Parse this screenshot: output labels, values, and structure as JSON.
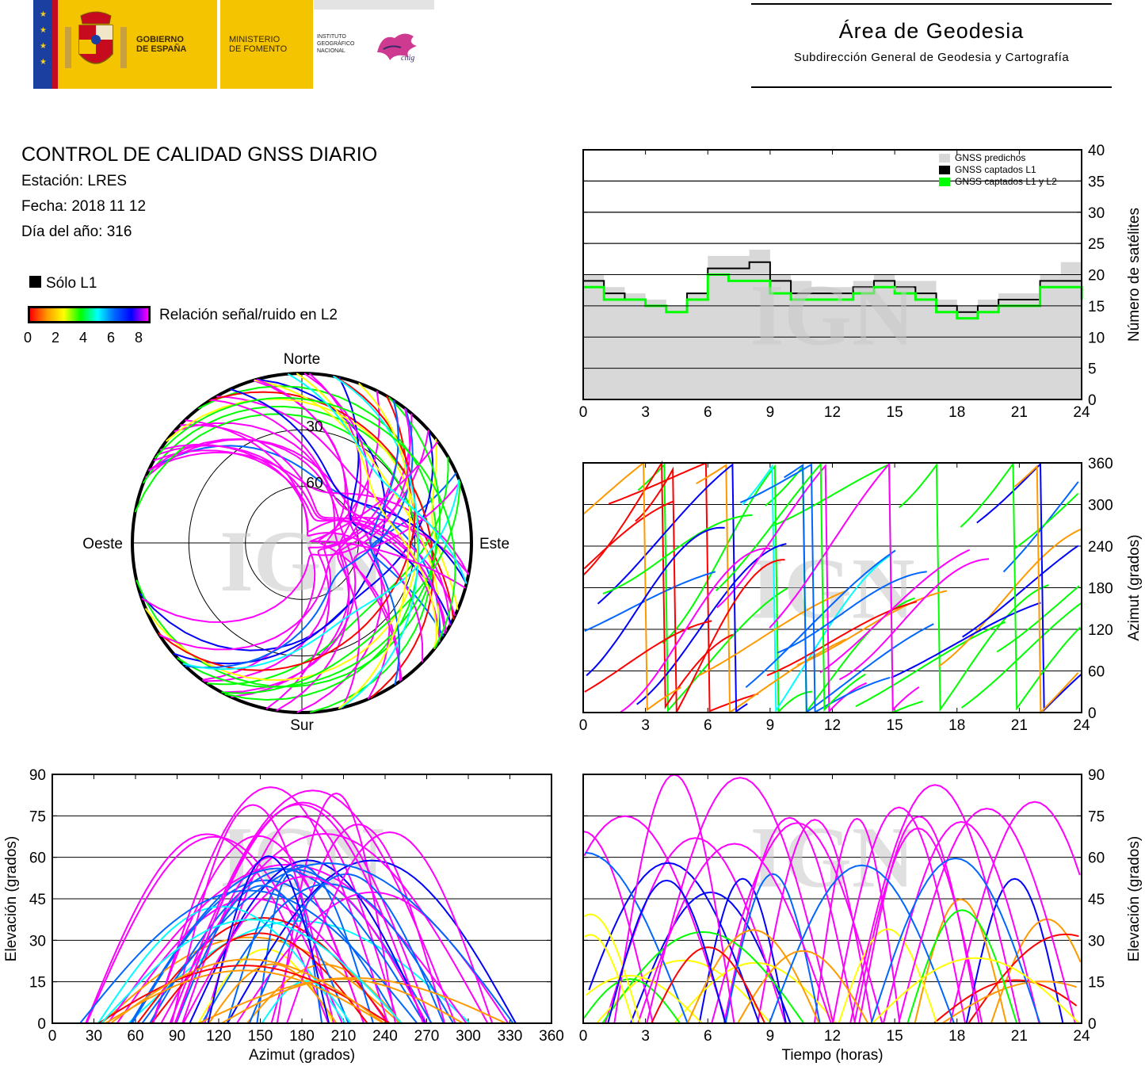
{
  "header": {
    "gobierno": "GOBIERNO\nDE ESPAÑA",
    "ministerio": "MINISTERIO\nDE FOMENTO",
    "instituto": "INSTITUTO\nGEOGRÁFICO\nNACIONAL",
    "cnig": "cnig",
    "area_title": "Área de Geodesia",
    "area_subtitle": "Subdirección General de Geodesia y Cartografía"
  },
  "info": {
    "title": "CONTROL DE CALIDAD GNSS DIARIO",
    "station": "Estación: LRES",
    "date": "Fecha: 2018 11 12",
    "doy": "Día del año: 316"
  },
  "legend": {
    "l1_only": "Sólo L1",
    "snr_label": "Relación señal/ruido en L2",
    "snr_ticks": [
      "0",
      "2",
      "4",
      "6",
      "8"
    ],
    "snr_colors": [
      "#ff0000",
      "#ff9900",
      "#ffff00",
      "#00ff00",
      "#00ffff",
      "#0066ff",
      "#0000ff",
      "#ff00ff"
    ]
  },
  "watermark": "IGN",
  "colors": {
    "predicted": "#d8d8d8",
    "l1": "#000000",
    "l1l2": "#00ff00",
    "l1_only": "#000000"
  },
  "chart_data": [
    {
      "id": "satellite-count",
      "type": "area",
      "ylabel": "Número de satélites",
      "xlim": [
        0,
        24
      ],
      "ylim": [
        0,
        40
      ],
      "xticks": [
        "0",
        "3",
        "6",
        "9",
        "12",
        "15",
        "18",
        "21",
        "24"
      ],
      "yticks": [
        "0",
        "5",
        "10",
        "15",
        "20",
        "25",
        "30",
        "35",
        "40"
      ],
      "grid": true,
      "legend_position": "top-right",
      "x": [
        0,
        1,
        2,
        3,
        4,
        5,
        6,
        7,
        8,
        9,
        10,
        11,
        12,
        13,
        14,
        15,
        16,
        17,
        18,
        19,
        20,
        21,
        22,
        23,
        24
      ],
      "series": [
        {
          "name": "GNSS predichos",
          "values": [
            20,
            18,
            17,
            16,
            15,
            17,
            23,
            23,
            24,
            20,
            19,
            18,
            18,
            19,
            20,
            19,
            19,
            16,
            15,
            16,
            17,
            17,
            20,
            22,
            18
          ]
        },
        {
          "name": "GNSS captados L1",
          "values": [
            19,
            17,
            16,
            15,
            14,
            17,
            21,
            21,
            22,
            19,
            17,
            17,
            17,
            18,
            19,
            18,
            17,
            15,
            14,
            15,
            16,
            16,
            19,
            19,
            17
          ]
        },
        {
          "name": "GNSS captados L1 y L2",
          "values": [
            18,
            16,
            16,
            15,
            14,
            16,
            20,
            19,
            19,
            17,
            16,
            16,
            16,
            17,
            18,
            17,
            16,
            14,
            13,
            14,
            15,
            15,
            18,
            18,
            16
          ]
        }
      ]
    },
    {
      "id": "skyplot",
      "type": "scatter",
      "projection": "polar",
      "direction_labels": {
        "north": "Norte",
        "south": "Sur",
        "west": "Oeste",
        "east": "Este"
      },
      "ring_labels": [
        "30",
        "60"
      ],
      "color_by": "snr_l2"
    },
    {
      "id": "azimuth-vs-time",
      "type": "scatter",
      "ylabel": "Azimut (grados)",
      "xlim": [
        0,
        24
      ],
      "ylim": [
        0,
        360
      ],
      "xticks": [
        "0",
        "3",
        "6",
        "9",
        "12",
        "15",
        "18",
        "21",
        "24"
      ],
      "yticks": [
        "0",
        "60",
        "120",
        "180",
        "240",
        "300",
        "360"
      ],
      "grid": true,
      "color_by": "snr_l2"
    },
    {
      "id": "elevation-vs-azimuth",
      "type": "scatter",
      "xlabel": "Azimut (grados)",
      "ylabel": "Elevación (grados)",
      "xlim": [
        0,
        360
      ],
      "ylim": [
        0,
        90
      ],
      "xticks": [
        "0",
        "30",
        "60",
        "90",
        "120",
        "150",
        "180",
        "210",
        "240",
        "270",
        "300",
        "330",
        "360"
      ],
      "yticks": [
        "0",
        "15",
        "30",
        "45",
        "60",
        "75",
        "90"
      ],
      "grid": true,
      "color_by": "snr_l2"
    },
    {
      "id": "elevation-vs-time",
      "type": "scatter",
      "xlabel": "Tiempo (horas)",
      "ylabel": "Elevación (grados)",
      "xlim": [
        0,
        24
      ],
      "ylim": [
        0,
        90
      ],
      "xticks": [
        "0",
        "3",
        "6",
        "9",
        "12",
        "15",
        "18",
        "21",
        "24"
      ],
      "yticks": [
        "0",
        "15",
        "30",
        "45",
        "60",
        "75",
        "90"
      ],
      "grid": true,
      "color_by": "snr_l2"
    }
  ]
}
